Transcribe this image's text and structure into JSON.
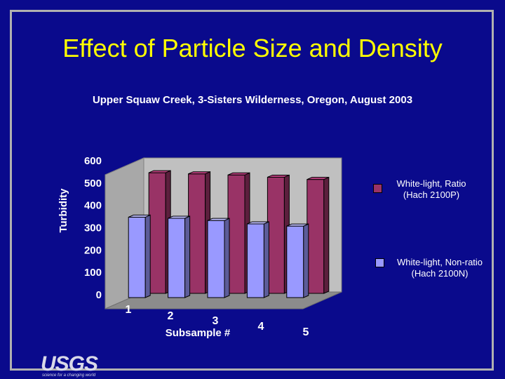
{
  "header": {
    "title": "Effect of Particle Size and Density",
    "subtitle": "Upper Squaw Creek, 3-Sisters Wilderness, Oregon, August 2003"
  },
  "logo": {
    "text": "USGS",
    "tagline": "science for a changing world"
  },
  "chart_data": {
    "type": "bar",
    "title": "Effect of Particle Size and Density",
    "subtitle": "Upper Squaw Creek, 3-Sisters Wilderness, Oregon, August 2003",
    "xlabel": "Subsample #",
    "ylabel": "Turbidity",
    "categories": [
      "1",
      "2",
      "3",
      "4",
      "5"
    ],
    "yticks": [
      "0",
      "100",
      "200",
      "300",
      "400",
      "500",
      "600"
    ],
    "ylim": [
      0,
      600
    ],
    "legend_position": "right",
    "grid": false,
    "series": [
      {
        "name": "White-light, Ratio (Hach 2100P)",
        "values": [
          540,
          535,
          530,
          520,
          510
        ],
        "color": "#993366"
      },
      {
        "name": "White-light, Non-ratio (Hach 2100N)",
        "values": [
          360,
          355,
          345,
          330,
          320
        ],
        "color": "#9999ff"
      }
    ]
  }
}
